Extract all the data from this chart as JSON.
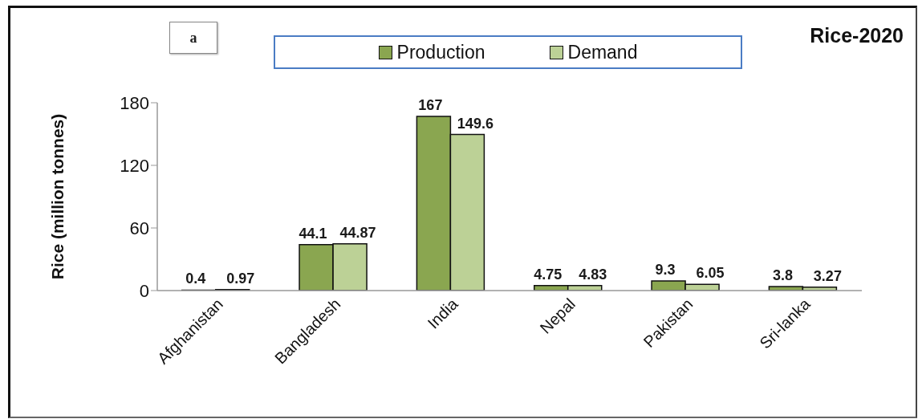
{
  "chart_data": {
    "type": "bar",
    "title": "Rice-2020",
    "ylabel": "Rice (million tonnes)",
    "annotations": [
      "a"
    ],
    "categories": [
      "Afghanistan",
      "Bangladesh",
      "India",
      "Nepal",
      "Pakistan",
      "Sri-lanka"
    ],
    "series": [
      {
        "name": "Production",
        "color": "#8aa650",
        "values": [
          0.4,
          44.1,
          167,
          4.75,
          9.3,
          3.8
        ]
      },
      {
        "name": "Demand",
        "color": "#bcd196",
        "values": [
          0.97,
          44.87,
          149.6,
          4.83,
          6.05,
          3.27
        ]
      }
    ],
    "ylim": [
      0,
      180
    ],
    "yticks": [
      0,
      60,
      120,
      180
    ],
    "legend": "top",
    "data_labels": true
  }
}
